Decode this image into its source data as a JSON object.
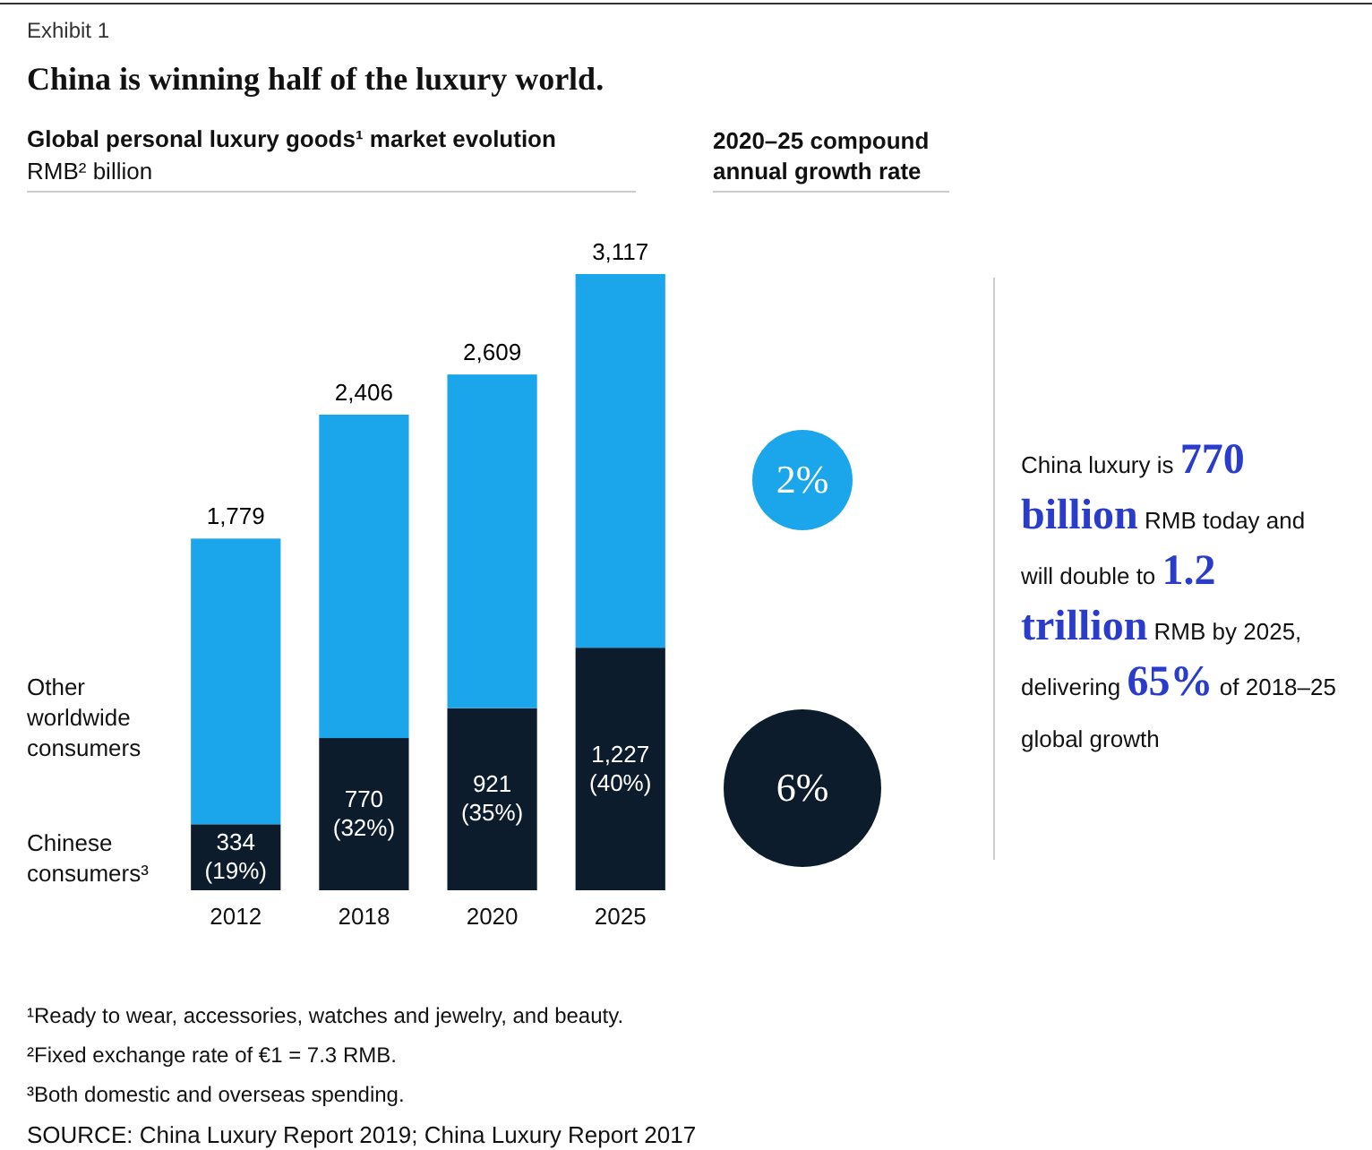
{
  "chart_data": {
    "type": "bar",
    "title": "China is winning half of the luxury world.",
    "subtitle": "Global personal luxury goods¹ market evolution",
    "ylabel": "RMB² billion",
    "categories": [
      "2012",
      "2018",
      "2020",
      "2025"
    ],
    "stacked": true,
    "legend": "left",
    "series": [
      {
        "name": "Chinese consumers³",
        "color": "#0c1c2c",
        "values": [
          334,
          770,
          921,
          1227
        ],
        "value_labels": [
          "334\n(19%)",
          "770\n(32%)",
          "921\n(35%)",
          "1,227\n(40%)"
        ]
      },
      {
        "name": "Other worldwide consumers",
        "color": "#1ba6ec",
        "values": [
          1445,
          1636,
          1688,
          1890
        ]
      }
    ],
    "totals": [
      "1,779",
      "2,406",
      "2,609",
      "3,117"
    ],
    "annotations": [
      "Exhibit 1",
      "2020–25 compound annual growth rate",
      "2%",
      "6%",
      "China luxury is",
      "770 billion",
      "RMB today and will double to",
      "1.2 trillion",
      "RMB by 2025, delivering",
      "65%",
      "of 2018–25 global growth",
      "¹Ready to wear, accessories, watches and jewelry, and beauty.",
      "²Fixed exchange rate of €1 = 7.3 RMB.",
      "³Both domestic and overseas spending.",
      "SOURCE: China Luxury Report 2019; China Luxury Report 2017"
    ]
  }
}
